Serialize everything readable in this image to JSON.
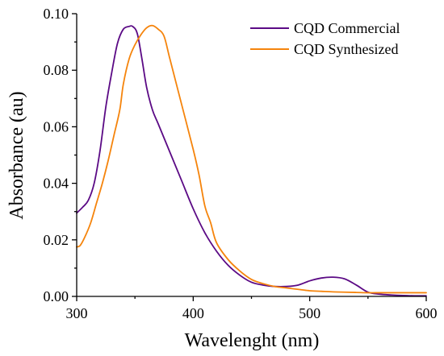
{
  "chart_data": {
    "type": "line",
    "title": "",
    "xlabel": "Wavelenght (nm)",
    "ylabel": "Absorbance (au)",
    "xlim": [
      300,
      600
    ],
    "ylim": [
      0.0,
      0.1
    ],
    "x_ticks": [
      "300",
      "400",
      "500",
      "600"
    ],
    "y_ticks": [
      "0.00",
      "0.02",
      "0.04",
      "0.06",
      "0.08",
      "0.10"
    ],
    "grid": false,
    "legend_position": "top-right",
    "series": [
      {
        "name": "CQD Commercial",
        "color": "#5b0a85",
        "x": [
          300,
          305,
          310,
          315,
          320,
          325,
          330,
          335,
          340,
          345,
          348,
          352,
          356,
          360,
          365,
          370,
          380,
          390,
          400,
          410,
          420,
          430,
          440,
          450,
          460,
          470,
          480,
          490,
          500,
          510,
          520,
          530,
          540,
          550,
          560,
          570,
          580,
          590,
          600
        ],
        "y": [
          0.0295,
          0.0315,
          0.034,
          0.04,
          0.0515,
          0.067,
          0.079,
          0.0895,
          0.0945,
          0.0955,
          0.0955,
          0.093,
          0.084,
          0.074,
          0.066,
          0.061,
          0.051,
          0.041,
          0.031,
          0.0225,
          0.016,
          0.011,
          0.0075,
          0.005,
          0.004,
          0.0035,
          0.0035,
          0.004,
          0.0055,
          0.0065,
          0.0068,
          0.0062,
          0.004,
          0.0015,
          0.0008,
          0.0005,
          0.0003,
          0.0002,
          0.0002
        ]
      },
      {
        "name": "CQD Synthesized",
        "color": "#f5840c",
        "x": [
          300,
          303,
          307,
          312,
          317,
          322,
          327,
          332,
          337,
          340,
          345,
          350,
          355,
          360,
          365,
          370,
          375,
          380,
          390,
          400,
          405,
          410,
          415,
          420,
          430,
          440,
          450,
          460,
          470,
          480,
          490,
          500,
          510,
          520,
          530,
          540,
          550,
          560,
          570,
          580,
          590,
          600
        ],
        "y": [
          0.0175,
          0.018,
          0.021,
          0.026,
          0.033,
          0.04,
          0.048,
          0.057,
          0.066,
          0.075,
          0.084,
          0.089,
          0.0925,
          0.095,
          0.0958,
          0.0945,
          0.092,
          0.084,
          0.068,
          0.052,
          0.043,
          0.032,
          0.026,
          0.019,
          0.013,
          0.009,
          0.006,
          0.0045,
          0.0035,
          0.003,
          0.0025,
          0.002,
          0.0018,
          0.0016,
          0.0015,
          0.0014,
          0.0013,
          0.0013,
          0.0013,
          0.0013,
          0.0013,
          0.0013
        ]
      }
    ]
  }
}
